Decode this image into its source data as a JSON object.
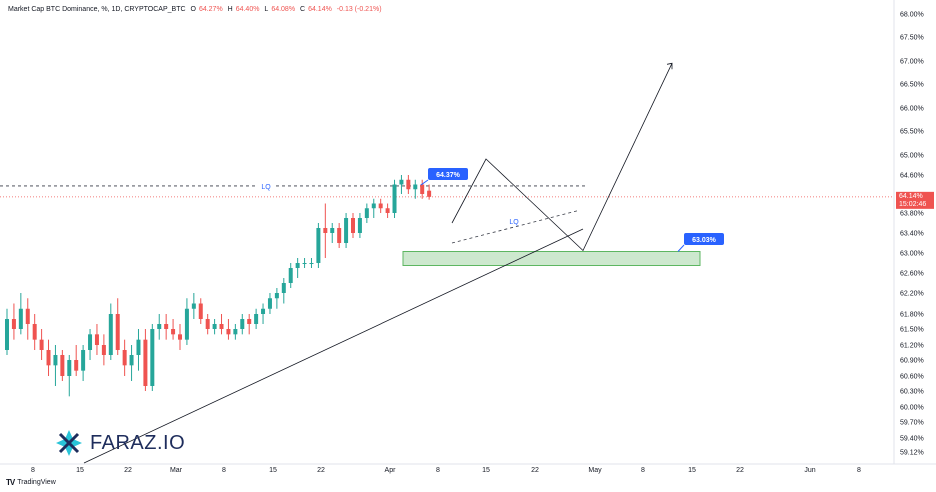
{
  "header": {
    "title": "Market Cap BTC Dominance, %, 1D, CRYPTOCAP_BTC",
    "o_label": "O",
    "o_value": "64.27%",
    "h_label": "H",
    "h_value": "64.40%",
    "l_label": "L",
    "l_value": "64.08%",
    "c_label": "C",
    "c_value": "64.14%",
    "change": "-0.13 (-0.21%)"
  },
  "colors": {
    "up": "#26a69a",
    "down": "#ef5350",
    "zone": "#c8e6c9",
    "zone_border": "#4caf50",
    "label_bg": "#2962ff"
  },
  "footer": {
    "brand": "TradingView",
    "logo": "TV"
  },
  "watermark": {
    "text": "FARAZ.IO"
  },
  "chart_data": {
    "type": "candlestick",
    "y_axis": {
      "ticks": [
        "68.00%",
        "67.50%",
        "67.00%",
        "66.50%",
        "66.00%",
        "65.50%",
        "65.00%",
        "64.60%",
        "63.80%",
        "63.40%",
        "63.00%",
        "62.60%",
        "62.20%",
        "61.80%",
        "61.50%",
        "61.20%",
        "60.90%",
        "60.60%",
        "60.30%",
        "60.00%",
        "59.70%",
        "59.40%",
        "59.12%"
      ],
      "current_price_label": "64.14%",
      "countdown_label": "15:02:46"
    },
    "x_axis": {
      "ticks": [
        "8",
        "15",
        "22",
        "Mar",
        "8",
        "15",
        "22",
        "Apr",
        "8",
        "15",
        "22",
        "May",
        "8",
        "15",
        "22",
        "Jun",
        "8"
      ]
    },
    "candles": [
      [
        61.1,
        61.9,
        61.0,
        61.7
      ],
      [
        61.7,
        62.0,
        61.3,
        61.5
      ],
      [
        61.5,
        62.2,
        61.4,
        61.9
      ],
      [
        61.9,
        62.1,
        61.3,
        61.6
      ],
      [
        61.6,
        61.8,
        61.1,
        61.3
      ],
      [
        61.3,
        61.5,
        60.9,
        61.1
      ],
      [
        61.1,
        61.3,
        60.6,
        60.8
      ],
      [
        60.8,
        61.2,
        60.4,
        61.0
      ],
      [
        61.0,
        61.1,
        60.5,
        60.6
      ],
      [
        60.6,
        61.0,
        60.2,
        60.9
      ],
      [
        60.9,
        61.2,
        60.6,
        60.7
      ],
      [
        60.7,
        61.2,
        60.5,
        61.1
      ],
      [
        61.1,
        61.5,
        60.9,
        61.4
      ],
      [
        61.4,
        61.6,
        61.0,
        61.2
      ],
      [
        61.2,
        61.4,
        60.8,
        61.0
      ],
      [
        61.0,
        62.0,
        60.9,
        61.8
      ],
      [
        61.8,
        62.1,
        61.0,
        61.1
      ],
      [
        61.1,
        61.3,
        60.6,
        60.8
      ],
      [
        60.8,
        61.2,
        60.5,
        61.0
      ],
      [
        61.0,
        61.5,
        60.7,
        61.3
      ],
      [
        61.3,
        61.5,
        60.3,
        60.4
      ],
      [
        60.4,
        61.6,
        60.3,
        61.5
      ],
      [
        61.5,
        61.8,
        61.3,
        61.6
      ],
      [
        61.6,
        61.8,
        61.3,
        61.5
      ],
      [
        61.5,
        61.7,
        61.3,
        61.4
      ],
      [
        61.4,
        61.6,
        61.1,
        61.3
      ],
      [
        61.3,
        62.1,
        61.2,
        61.9
      ],
      [
        61.9,
        62.2,
        61.7,
        62.0
      ],
      [
        62.0,
        62.1,
        61.6,
        61.7
      ],
      [
        61.7,
        61.8,
        61.4,
        61.5
      ],
      [
        61.5,
        61.7,
        61.4,
        61.6
      ],
      [
        61.6,
        61.8,
        61.4,
        61.5
      ],
      [
        61.5,
        61.7,
        61.3,
        61.4
      ],
      [
        61.4,
        61.6,
        61.3,
        61.5
      ],
      [
        61.5,
        61.8,
        61.4,
        61.7
      ],
      [
        61.7,
        61.8,
        61.4,
        61.6
      ],
      [
        61.6,
        61.9,
        61.5,
        61.8
      ],
      [
        61.8,
        62.0,
        61.6,
        61.9
      ],
      [
        61.9,
        62.2,
        61.8,
        62.1
      ],
      [
        62.1,
        62.3,
        61.9,
        62.2
      ],
      [
        62.2,
        62.5,
        62.0,
        62.4
      ],
      [
        62.4,
        62.8,
        62.3,
        62.7
      ],
      [
        62.7,
        62.9,
        62.5,
        62.8
      ],
      [
        62.8,
        62.9,
        62.7,
        62.8
      ],
      [
        62.8,
        62.9,
        62.7,
        62.8
      ],
      [
        62.8,
        63.6,
        62.7,
        63.5
      ],
      [
        63.5,
        64.0,
        62.9,
        63.4
      ],
      [
        63.4,
        63.6,
        63.2,
        63.5
      ],
      [
        63.5,
        63.6,
        63.1,
        63.2
      ],
      [
        63.2,
        63.8,
        63.1,
        63.7
      ],
      [
        63.7,
        63.8,
        63.3,
        63.4
      ],
      [
        63.4,
        63.8,
        63.3,
        63.7
      ],
      [
        63.7,
        64.0,
        63.6,
        63.9
      ],
      [
        63.9,
        64.1,
        63.7,
        64.0
      ],
      [
        64.0,
        64.1,
        63.8,
        63.9
      ],
      [
        63.9,
        64.0,
        63.7,
        63.8
      ],
      [
        63.8,
        64.5,
        63.7,
        64.4
      ],
      [
        64.4,
        64.6,
        64.2,
        64.5
      ],
      [
        64.5,
        64.6,
        64.2,
        64.3
      ],
      [
        64.3,
        64.5,
        64.1,
        64.4
      ],
      [
        64.4,
        64.5,
        64.1,
        64.2
      ],
      [
        64.27,
        64.4,
        64.08,
        64.14
      ]
    ],
    "annotations": {
      "lq_upper": {
        "price": 64.37,
        "label": "LQ"
      },
      "lq_upper_badge": "64.37%",
      "lq_lower_label": "LQ",
      "zone": {
        "top": 63.03,
        "bottom": 62.75,
        "badge": "63.03%"
      },
      "price_line": 64.14
    }
  }
}
